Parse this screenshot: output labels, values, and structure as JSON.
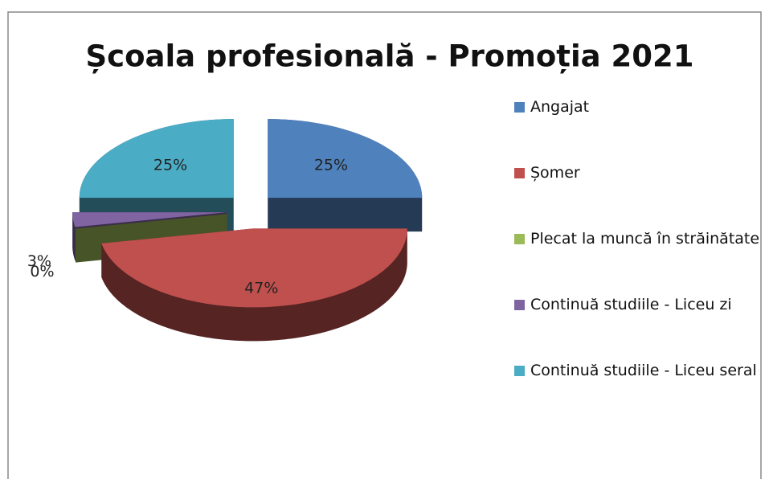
{
  "chart_data": {
    "type": "pie",
    "title": "Școala profesională - Promoția 2021",
    "categories": [
      "Angajat",
      "Șomer",
      "Plecat la muncă în străinătate",
      "Continuă studiile - Liceu zi",
      "Continuă studiile - Liceu seral"
    ],
    "values": [
      25,
      47,
      0,
      3,
      25
    ],
    "value_labels": [
      "25%",
      "47%",
      "0%",
      "3%",
      "25%"
    ],
    "colors": [
      "#4f81bd",
      "#c0504d",
      "#9bbb59",
      "#8064a2",
      "#4bacc6"
    ],
    "legend": "right"
  }
}
